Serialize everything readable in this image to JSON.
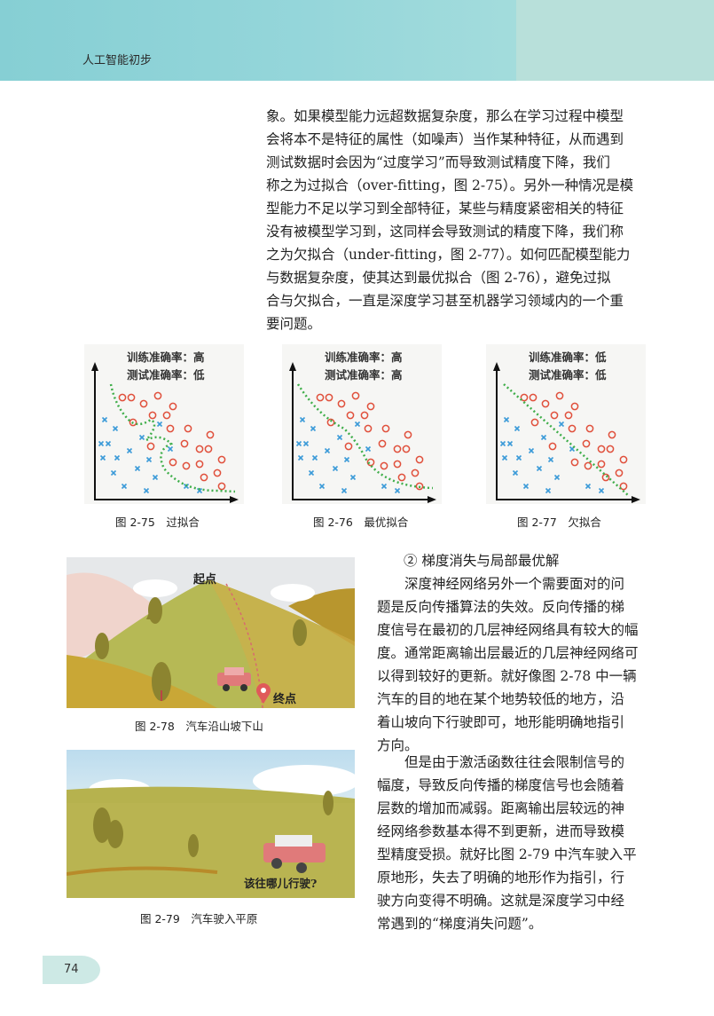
{
  "header": {
    "book_title": "人工智能初步"
  },
  "para1": [
    "象。如果模型能力远超数据复杂度，那么在学习过程中模型",
    "会将本不是特征的属性（如噪声）当作某种特征，从而遇到",
    "测试数据时会因为“过度学习”而导致测试精度下降，我们",
    "称之为过拟合（over-fitting，图 2-75）。另外一种情况是模",
    "型能力不足以学习到全部特征，某些与精度紧密相关的特征",
    "没有被模型学习到，这同样会导致测试的精度下降，我们称",
    "之为欠拟合（under-fitting，图 2-77）。如何匹配模型能力",
    "与数据复杂度，使其达到最优拟合（图 2-76），避免过拟",
    "合与欠拟合，一直是深度学习甚至机器学习领域内的一个重",
    "要问题。"
  ],
  "figures": [
    {
      "train": "训练准确率：高",
      "test": "测试准确率：低",
      "caption": "图 2-75　过拟合"
    },
    {
      "train": "训练准确率：高",
      "test": "测试准确率：高",
      "caption": "图 2-76　最优拟合"
    },
    {
      "train": "训练准确率：低",
      "test": "测试准确率：低",
      "caption": "图 2-77　欠拟合"
    }
  ],
  "colors": {
    "circle": "#e0503c",
    "cross": "#3a9ad8",
    "curve": "#3fae4a",
    "header": "#8fd4d8"
  },
  "section_title": "② 梯度消失与局部最优解",
  "para2": [
    "深度神经网络另外一个需要面对的问",
    "题是反向传播算法的失效。反向传播的梯",
    "度信号在最初的几层神经网络具有较大的幅",
    "度。通常距离输出层最近的几层神经网络可",
    "以得到较好的更新。就好像图 2-78 中一辆",
    "汽车的目的地在某个地势较低的地方，沿",
    "着山坡向下行驶即可，地形能明确地指引",
    "方向。"
  ],
  "para3": [
    "但是由于激活函数往往会限制信号的",
    "幅度，导致反向传播的梯度信号也会随着",
    "层数的增加而减弱。距离输出层较远的神",
    "经网络参数基本得不到更新，进而导致模",
    "型精度受损。就好比图 2-79 中汽车驶入平",
    "原地形，失去了明确的地形作为指引，行",
    "驶方向变得不明确。这就是深度学习中经",
    "常遇到的“梯度消失问题”。"
  ],
  "fig78": {
    "start_label": "起点",
    "end_label": "终点",
    "caption": "图 2-78　汽车沿山坡下山"
  },
  "fig79": {
    "question": "该往哪儿行驶?",
    "caption": "图 2-79　汽车驶入平原"
  },
  "page_number": "74"
}
